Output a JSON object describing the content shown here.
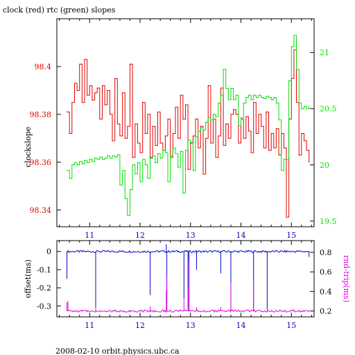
{
  "top": {
    "title": "clock (red) rtc (green) slopes",
    "ylabel": "clockslope",
    "x_ticks": [
      "11",
      "12",
      "13",
      "14",
      "15"
    ],
    "left_ticks": [
      "98.4",
      "98.38",
      "98.36",
      "98.34"
    ],
    "right_ticks": [
      "21",
      "20.5",
      "20",
      "19.5"
    ],
    "left_color": "#e00000",
    "right_color": "#00e000"
  },
  "bottom": {
    "ylabel_left": "offset(ms)",
    "ylabel_right": "rnd-trip(ms)",
    "x_ticks": [
      "11",
      "12",
      "13",
      "14",
      "15"
    ],
    "left_ticks": [
      "0",
      "-0.1",
      "-0.2",
      "-0.3"
    ],
    "right_ticks": [
      "0.8",
      "0.6",
      "0.4",
      "0.2"
    ],
    "left_color": "#0000c8",
    "right_color": "#e000e0"
  },
  "footer": "2008-02-10 orbit.physics.ubc.ca",
  "chart_data": [
    {
      "type": "line",
      "title": "clock (red) rtc (green) slopes",
      "ylabel": "clockslope",
      "xlim": [
        10.35,
        15.45
      ],
      "ylim_left": [
        98.333,
        98.42
      ],
      "ylim_right": [
        19.45,
        21.3
      ],
      "series": [
        {
          "name": "clock",
          "axis": "left",
          "color": "#e00000",
          "x": [
            10.55,
            10.6,
            10.65,
            10.7,
            10.75,
            10.8,
            10.85,
            10.9,
            10.95,
            11.0,
            11.05,
            11.1,
            11.15,
            11.2,
            11.25,
            11.3,
            11.35,
            11.4,
            11.45,
            11.5,
            11.55,
            11.6,
            11.65,
            11.7,
            11.75,
            11.8,
            11.85,
            11.9,
            11.95,
            12.0,
            12.05,
            12.1,
            12.15,
            12.2,
            12.25,
            12.3,
            12.35,
            12.4,
            12.45,
            12.5,
            12.55,
            12.6,
            12.65,
            12.7,
            12.75,
            12.8,
            12.85,
            12.9,
            12.95,
            13.0,
            13.05,
            13.1,
            13.15,
            13.2,
            13.25,
            13.3,
            13.35,
            13.4,
            13.45,
            13.5,
            13.55,
            13.6,
            13.65,
            13.7,
            13.75,
            13.8,
            13.85,
            13.9,
            13.95,
            14.0,
            14.05,
            14.1,
            14.15,
            14.2,
            14.25,
            14.3,
            14.35,
            14.4,
            14.45,
            14.5,
            14.55,
            14.6,
            14.65,
            14.7,
            14.75,
            14.8,
            14.85,
            14.9,
            14.95,
            15.0,
            15.05,
            15.1,
            15.15,
            15.2,
            15.25,
            15.3,
            15.35
          ],
          "values": [
            98.381,
            98.372,
            98.385,
            98.393,
            98.39,
            98.401,
            98.385,
            98.403,
            98.388,
            98.392,
            98.386,
            98.389,
            98.391,
            98.378,
            98.392,
            98.384,
            98.39,
            98.38,
            98.369,
            98.395,
            98.376,
            98.371,
            98.389,
            98.37,
            98.375,
            98.401,
            98.362,
            98.376,
            98.368,
            98.364,
            98.385,
            98.372,
            98.38,
            98.362,
            98.375,
            98.367,
            98.381,
            98.368,
            98.365,
            98.371,
            98.378,
            98.362,
            98.372,
            98.383,
            98.37,
            98.388,
            98.378,
            98.384,
            98.357,
            98.368,
            98.371,
            98.378,
            98.366,
            98.375,
            98.355,
            98.37,
            98.392,
            98.368,
            98.378,
            98.362,
            98.371,
            98.391,
            98.367,
            98.376,
            98.37,
            98.38,
            98.382,
            98.38,
            98.368,
            98.378,
            98.37,
            98.379,
            98.373,
            98.364,
            98.385,
            98.372,
            98.38,
            98.375,
            98.366,
            98.381,
            98.365,
            98.372,
            98.366,
            98.374,
            98.363,
            98.372,
            98.366,
            98.337,
            98.378,
            98.395,
            98.407,
            98.385,
            98.363,
            98.372,
            98.369,
            98.365,
            98.36
          ]
        },
        {
          "name": "rtc",
          "axis": "right",
          "color": "#00e000",
          "x": [
            10.55,
            10.6,
            10.65,
            10.7,
            10.75,
            10.8,
            10.85,
            10.9,
            10.95,
            11.0,
            11.05,
            11.1,
            11.15,
            11.2,
            11.25,
            11.3,
            11.35,
            11.4,
            11.45,
            11.5,
            11.55,
            11.6,
            11.65,
            11.7,
            11.75,
            11.8,
            11.85,
            11.9,
            11.95,
            12.0,
            12.05,
            12.1,
            12.15,
            12.2,
            12.25,
            12.3,
            12.35,
            12.4,
            12.45,
            12.5,
            12.55,
            12.6,
            12.65,
            12.7,
            12.75,
            12.8,
            12.85,
            12.9,
            12.95,
            13.0,
            13.05,
            13.1,
            13.15,
            13.2,
            13.25,
            13.3,
            13.35,
            13.4,
            13.45,
            13.5,
            13.55,
            13.6,
            13.65,
            13.7,
            13.75,
            13.8,
            13.85,
            13.9,
            13.95,
            14.0,
            14.05,
            14.1,
            14.15,
            14.2,
            14.25,
            14.3,
            14.35,
            14.4,
            14.45,
            14.5,
            14.55,
            14.6,
            14.65,
            14.7,
            14.75,
            14.8,
            14.85,
            14.9,
            14.95,
            15.0,
            15.05,
            15.1,
            15.15,
            15.2,
            15.25,
            15.3,
            15.35
          ],
          "values": [
            19.95,
            19.88,
            20.0,
            20.02,
            20.0,
            20.03,
            20.01,
            20.04,
            20.02,
            20.05,
            20.03,
            20.06,
            20.05,
            20.07,
            20.05,
            20.06,
            20.08,
            20.06,
            20.08,
            20.07,
            20.09,
            19.82,
            19.95,
            19.7,
            19.55,
            19.78,
            20.0,
            19.92,
            20.02,
            19.85,
            20.05,
            20.0,
            19.88,
            20.06,
            20.08,
            20.02,
            20.1,
            20.06,
            20.13,
            20.11,
            19.85,
            20.08,
            20.15,
            20.1,
            19.98,
            20.12,
            19.75,
            20.13,
            20.22,
            20.2,
            19.95,
            20.25,
            20.3,
            20.33,
            20.31,
            20.38,
            20.42,
            20.4,
            20.45,
            20.43,
            20.55,
            20.62,
            20.85,
            20.68,
            20.58,
            20.68,
            20.58,
            20.62,
            20.35,
            20.42,
            20.55,
            20.6,
            20.62,
            20.58,
            20.62,
            20.6,
            20.62,
            20.6,
            20.59,
            20.61,
            20.6,
            20.58,
            20.6,
            20.55,
            20.4,
            19.95,
            20.05,
            20.05,
            20.75,
            21.05,
            21.15,
            20.85,
            20.55,
            20.5,
            20.52,
            20.5,
            20.52
          ]
        }
      ]
    },
    {
      "type": "line",
      "ylabel": "offset(ms)",
      "xlim": [
        10.35,
        15.45
      ],
      "ylim_left": [
        -0.36,
        0.06
      ],
      "ylim_right": [
        0.14,
        0.92
      ],
      "series": [
        {
          "name": "offset",
          "axis": "left",
          "color": "#0000c8",
          "baseline": 0.0,
          "spikes": [
            [
              10.55,
              -0.15
            ],
            [
              11.12,
              -0.31
            ],
            [
              12.2,
              -0.24
            ],
            [
              12.52,
              0.04
            ],
            [
              12.53,
              -0.33
            ],
            [
              12.87,
              -0.26
            ],
            [
              12.95,
              -0.31
            ],
            [
              12.97,
              -0.33
            ],
            [
              13.12,
              -0.1
            ],
            [
              13.6,
              -0.12
            ],
            [
              13.8,
              -0.33
            ],
            [
              14.25,
              -0.33
            ],
            [
              14.52,
              -0.32
            ],
            [
              15.35,
              -0.03
            ]
          ]
        },
        {
          "name": "rnd-trip",
          "axis": "right",
          "color": "#e000e0",
          "baseline": 0.2,
          "spikes": [
            [
              10.55,
              0.29
            ],
            [
              10.57,
              0.3
            ],
            [
              11.12,
              0.23
            ],
            [
              12.2,
              0.25
            ],
            [
              12.52,
              0.41
            ],
            [
              12.53,
              0.55
            ],
            [
              12.87,
              0.32
            ],
            [
              12.95,
              0.43
            ],
            [
              12.97,
              0.71
            ],
            [
              13.12,
              0.24
            ],
            [
              13.6,
              0.24
            ],
            [
              13.8,
              0.49
            ],
            [
              14.25,
              0.51
            ],
            [
              14.52,
              0.23
            ],
            [
              15.35,
              0.21
            ]
          ]
        }
      ]
    }
  ]
}
